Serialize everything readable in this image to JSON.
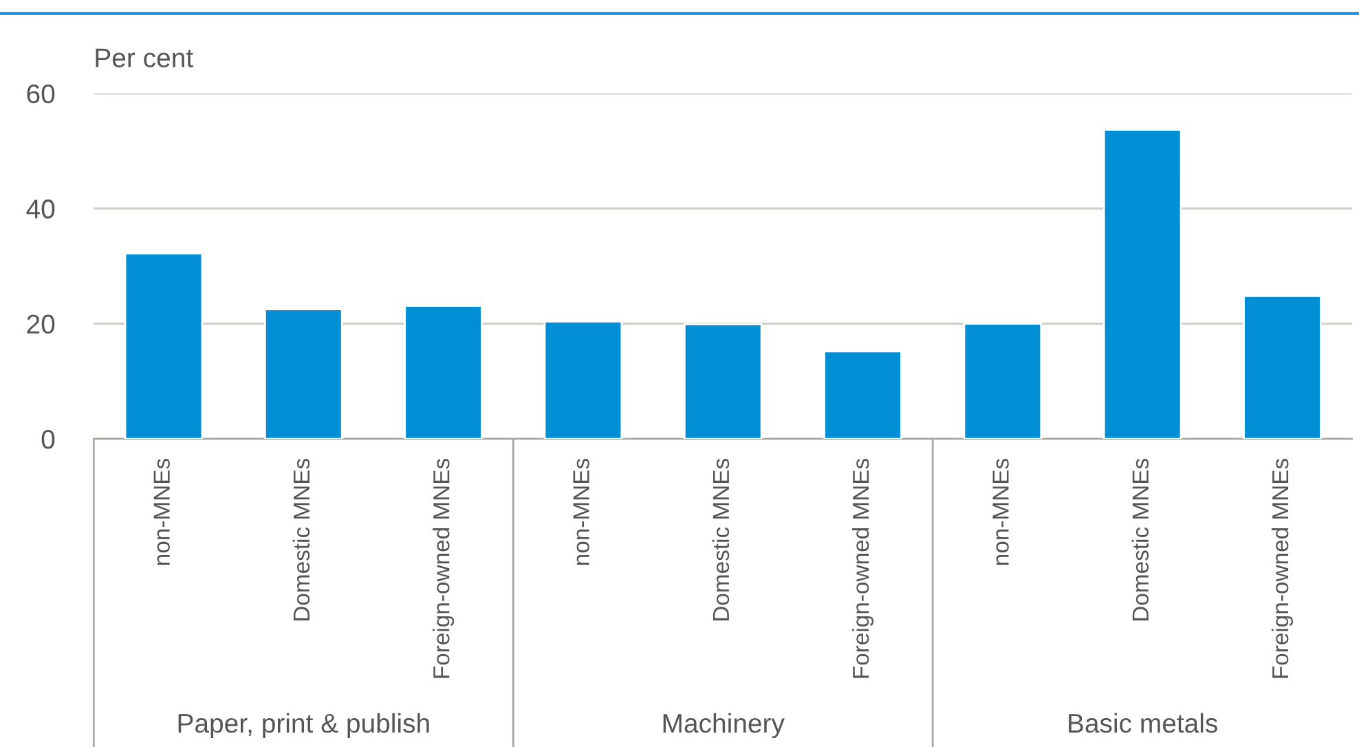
{
  "chart_data": {
    "type": "bar",
    "ylabel": "Per cent",
    "categories": [
      "non-MNEs",
      "Domestic MNEs",
      "Foreign-owned MNEs",
      "non-MNEs",
      "Domestic MNEs",
      "Foreign-owned MNEs",
      "non-MNEs",
      "Domestic MNEs",
      "Foreign-owned MNEs"
    ],
    "values": [
      32.2,
      22.5,
      23.1,
      20.4,
      19.9,
      15.2,
      20.0,
      53.7,
      24.8
    ],
    "color": "#008fd5",
    "ylim": [
      0,
      60
    ],
    "yticks": [
      0,
      20,
      40,
      60
    ],
    "grid": "y",
    "annotations": [
      "Paper, print & publish",
      "Machinery",
      "Basic metals"
    ]
  }
}
